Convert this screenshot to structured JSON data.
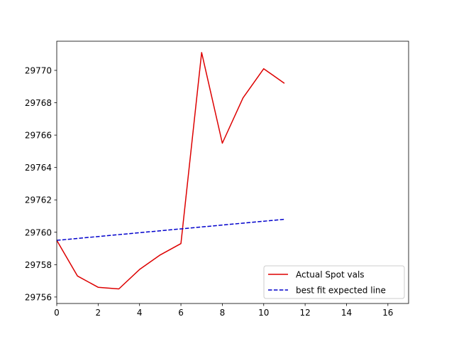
{
  "chart_data": {
    "type": "line",
    "title": "",
    "xlabel": "",
    "ylabel": "",
    "xlim": [
      0,
      17
    ],
    "ylim": [
      29755.6,
      29771.8
    ],
    "xticks": [
      0,
      2,
      4,
      6,
      8,
      10,
      12,
      14,
      16
    ],
    "yticks": [
      29756,
      29758,
      29760,
      29762,
      29764,
      29766,
      29768,
      29770
    ],
    "grid": false,
    "legend_position": "lower-right",
    "series": [
      {
        "name": "Actual Spot vals",
        "color": "#dd0000",
        "style": "solid",
        "x": [
          0,
          1,
          2,
          3,
          4,
          5,
          6,
          7,
          8,
          9,
          10,
          11
        ],
        "values": [
          29759.5,
          29757.3,
          29756.6,
          29756.5,
          29757.7,
          29758.6,
          29759.3,
          29771.1,
          29765.5,
          29768.3,
          29770.1,
          29769.2
        ]
      },
      {
        "name": "best fit expected line",
        "color": "#0000cc",
        "style": "dashed",
        "x": [
          0,
          11
        ],
        "values": [
          29759.5,
          29760.8
        ]
      }
    ]
  }
}
